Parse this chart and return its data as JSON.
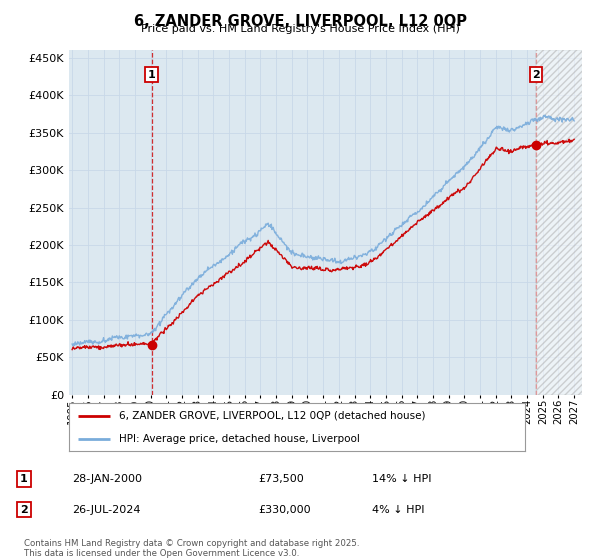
{
  "title": "6, ZANDER GROVE, LIVERPOOL, L12 0QP",
  "subtitle": "Price paid vs. HM Land Registry's House Price Index (HPI)",
  "legend_line1": "6, ZANDER GROVE, LIVERPOOL, L12 0QP (detached house)",
  "legend_line2": "HPI: Average price, detached house, Liverpool",
  "annotation1_box": "1",
  "annotation1_date": "28-JAN-2000",
  "annotation1_price": "£73,500",
  "annotation1_hpi": "14% ↓ HPI",
  "annotation2_box": "2",
  "annotation2_date": "26-JUL-2024",
  "annotation2_price": "£330,000",
  "annotation2_hpi": "4% ↓ HPI",
  "footer": "Contains HM Land Registry data © Crown copyright and database right 2025.\nThis data is licensed under the Open Government Licence v3.0.",
  "red_color": "#cc0000",
  "blue_color": "#7aacdb",
  "grid_color": "#c8d8e8",
  "plot_bg_color": "#dce8f0",
  "bg_color": "#ffffff",
  "ylim": [
    0,
    460000
  ],
  "yticks": [
    0,
    50000,
    100000,
    150000,
    200000,
    250000,
    300000,
    350000,
    400000,
    450000
  ],
  "x_start_year": 1995,
  "x_end_year": 2027,
  "sale1_year": 2000.07,
  "sale1_price": 73500,
  "sale2_year": 2024.57,
  "sale2_price": 330000
}
